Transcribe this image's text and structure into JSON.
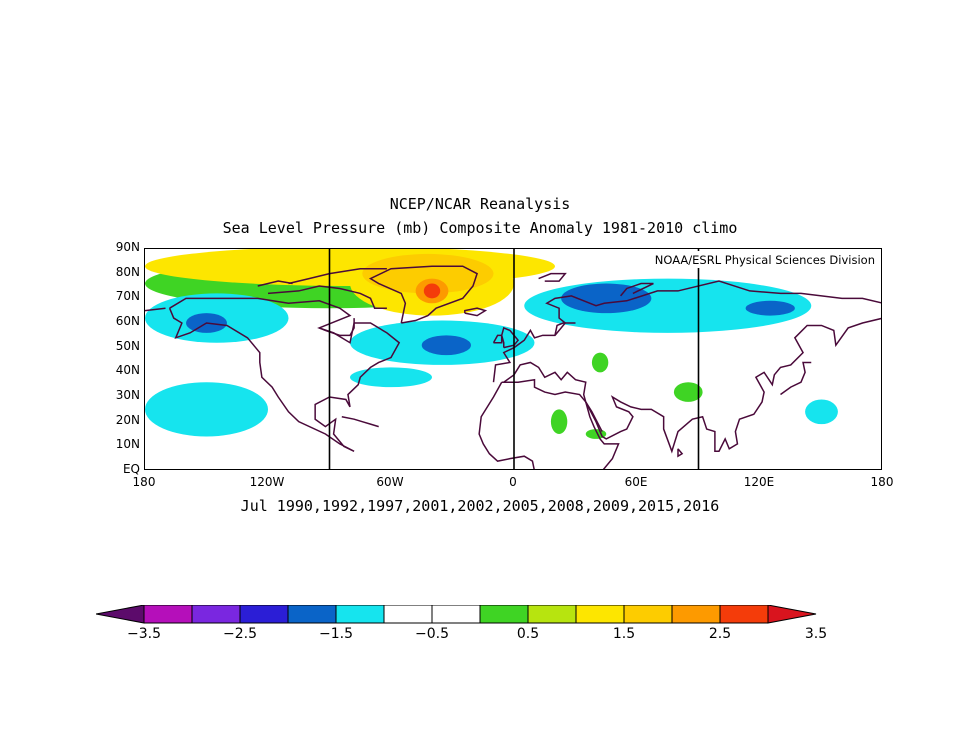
{
  "title_line1": "NCEP/NCAR Reanalysis",
  "title_line2": "Sea Level Pressure (mb) Composite Anomaly 1981-2010 climo",
  "credit": "NOAA/ESRL Physical Sciences Division",
  "caption": "Jul 1990,1992,1997,2001,2002,2005,2008,2009,2015,2016",
  "lat_labels": [
    "90N",
    "80N",
    "70N",
    "60N",
    "50N",
    "40N",
    "30N",
    "20N",
    "10N",
    "EQ"
  ],
  "lon_labels": [
    "180",
    "120W",
    "60W",
    "0",
    "60E",
    "120E",
    "180"
  ],
  "colorbar": {
    "labels": [
      "-3.5",
      "-2.5",
      "-1.5",
      "-0.5",
      "0.5",
      "1.5",
      "2.5",
      "3.5"
    ],
    "colors": [
      "#5c0b6b",
      "#b50fba",
      "#7a27e0",
      "#2b1ed6",
      "#0a64c8",
      "#16e4ee",
      "#ffffff",
      "#ffffff",
      "#3fd424",
      "#b7e40f",
      "#fde600",
      "#fdcc00",
      "#fd9a00",
      "#f43c0a",
      "#d9141e"
    ]
  },
  "map": {
    "lat_range": [
      0,
      90
    ],
    "lon_range": [
      -180,
      180
    ],
    "meridian_lines_deg": [
      -90,
      0,
      90
    ],
    "anomaly_regions": [
      {
        "level": 0.5,
        "color": "#3fd424",
        "center": [
          -90,
          76
        ],
        "radius": [
          90,
          10
        ]
      },
      {
        "level": 1.5,
        "color": "#fde600",
        "center": [
          -80,
          83
        ],
        "radius": [
          100,
          8
        ]
      },
      {
        "level": 1.5,
        "color": "#fde600",
        "center": [
          -40,
          76
        ],
        "radius": [
          40,
          13
        ]
      },
      {
        "level": 2.5,
        "color": "#fdcc00",
        "center": [
          -42,
          80
        ],
        "radius": [
          32,
          8
        ]
      },
      {
        "level": 3.0,
        "color": "#fd9a00",
        "center": [
          -40,
          73
        ],
        "radius": [
          8,
          5
        ]
      },
      {
        "level": 3.5,
        "color": "#f43c0a",
        "center": [
          -40,
          73
        ],
        "radius": [
          4,
          3
        ]
      },
      {
        "level": -0.5,
        "color": "#16e4ee",
        "center": [
          -35,
          52
        ],
        "radius": [
          45,
          9
        ]
      },
      {
        "level": -1.5,
        "color": "#0a64c8",
        "center": [
          -33,
          51
        ],
        "radius": [
          12,
          4
        ]
      },
      {
        "level": -0.5,
        "color": "#16e4ee",
        "center": [
          -145,
          62
        ],
        "radius": [
          35,
          10
        ]
      },
      {
        "level": -1.5,
        "color": "#0a64c8",
        "center": [
          -150,
          60
        ],
        "radius": [
          10,
          4
        ]
      },
      {
        "level": -0.5,
        "color": "#16e4ee",
        "center": [
          -150,
          25
        ],
        "radius": [
          30,
          11
        ]
      },
      {
        "level": -0.5,
        "color": "#16e4ee",
        "center": [
          75,
          67
        ],
        "radius": [
          70,
          11
        ]
      },
      {
        "level": -1.5,
        "color": "#0a64c8",
        "center": [
          45,
          70
        ],
        "radius": [
          22,
          6
        ]
      },
      {
        "level": -1.5,
        "color": "#0a64c8",
        "center": [
          125,
          66
        ],
        "radius": [
          12,
          3
        ]
      },
      {
        "level": 0.5,
        "color": "#3fd424",
        "center": [
          22,
          20
        ],
        "radius": [
          4,
          5
        ]
      },
      {
        "level": 0.5,
        "color": "#3fd424",
        "center": [
          42,
          44
        ],
        "radius": [
          4,
          4
        ]
      },
      {
        "level": 0.5,
        "color": "#3fd424",
        "center": [
          85,
          32
        ],
        "radius": [
          7,
          4
        ]
      },
      {
        "level": 0.5,
        "color": "#3fd424",
        "center": [
          40,
          15
        ],
        "radius": [
          5,
          2
        ]
      },
      {
        "level": -0.5,
        "color": "#16e4ee",
        "center": [
          150,
          24
        ],
        "radius": [
          8,
          5
        ]
      },
      {
        "level": -0.5,
        "color": "#16e4ee",
        "center": [
          -60,
          38
        ],
        "radius": [
          20,
          4
        ]
      }
    ]
  }
}
